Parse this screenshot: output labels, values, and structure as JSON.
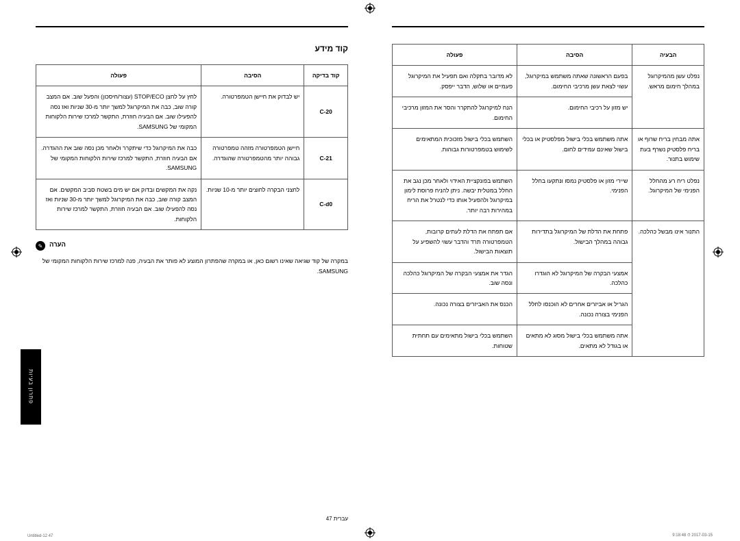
{
  "registration_glyph": "⊕",
  "right_page": {
    "headers": [
      "הבעיה",
      "הסיבה",
      "פעולה"
    ],
    "rows": [
      {
        "c0": "נפלט עשן מהמיקרוגל במהלך חימום מראש.",
        "c1": "בפעם הראשונה שאתה משתמש במיקרוגל, עשוי לצאת עשן מרכיבי החימום.",
        "c2": "לא מדובר בתקלה ואם תפעיל את המיקרוגל פעמיים או שלוש, הדבר ייפסק."
      },
      {
        "c0": "",
        "c1": "יש מזון על רכיבי החימום.",
        "c2": "הנח למיקרוגל להתקרר והסר את המזון מרכיבי החימום."
      },
      {
        "c0": "אתה מבחין בריח שרוף או בריח פלסטיק נשרף בעת שימוש בתנור.",
        "c1": "אתה משתמש בכלי בישול מפלסטיק או בכלי בישול שאינם עמידים לחום.",
        "c2": "השתמש בכלי בישול מזכוכית המתאימים לשימוש בטמפרטורות גבוהות."
      },
      {
        "c0": "נפלט ריח רע מהחלל הפנימי של המיקרוגל.",
        "c1": "שיירי מזון או פלסטיק נמסו ונתקעו בחלל הפנימי.",
        "c2": "השתמש בפונקציית האידוי ולאחר מכן נגב את החלל במטלית יבשה. ניתן להניח פרוסת לימון במיקרוגל ולהפעיל אותו כדי לנטרל את הריח במהירות רבה יותר."
      },
      {
        "c0": "התנור אינו מבשל כהלכה.",
        "c1": "פתחת את הדלת של המיקרוגל בתדירות גבוהה במהלך הבישול.",
        "c2": "אם תפתח את הדלת לעתים קרובות, הטמפרטורה תרד והדבר עשוי להשפיע על תוצאות הבישול."
      },
      {
        "c0": "",
        "c1": "אמצעי הבקרה של המיקרוגל לא הוגדרו כהלכה.",
        "c2": "הגדר את אמצעי הבקרה של המיקרוגל כהלכה ונסה שוב."
      },
      {
        "c0": "",
        "c1": "הגריל או אביזרים אחרים לא הוכנסו לחלל הפנימי בצורה נכונה.",
        "c2": "הכנס את האביזרים בצורה נכונה."
      },
      {
        "c0": "",
        "c1": "אתה משתמש בכלי בישול מסוג לא מתאים או בגודל לא מתאים.",
        "c2": "השתמש בכלי בישול מתאימים עם תחתית שטוחות."
      }
    ]
  },
  "left_page": {
    "title": "קוד מידע",
    "headers": [
      "קוד בדיקה",
      "הסיבה",
      "פעולה"
    ],
    "rows": [
      {
        "code": "C-20",
        "c1": "יש לבדוק את חיישן הטמפרטורה.",
        "c2": "לחץ על לחצן STOP/ECO (עצור/חיסכון) והפעל שוב. אם המצב קורה שוב, כבה את המיקרוגל למשך יותר מ-30 שניות ואז נסה להפעילו שוב. אם הבעיה חוזרת, התקשר למרכז שירות הלקוחות המקומי של SAMSUNG."
      },
      {
        "code": "C-21",
        "c1": "חיישן הטמפרטורה מזהה טמפרטורה גבוהה יותר מהטמפרטורה שהוגדרה.",
        "c2": "כבה את המיקרוגל כדי שיתקרר ולאחר מכן נסה שוב את ההגדרה. אם הבעיה חוזרת, התקשר למרכז שירות הלקוחות המקומי של SAMSUNG."
      },
      {
        "code": "C-d0",
        "c1": "לחצני הבקרה לחוצים יותר מ-10 שניות.",
        "c2": "נקה את המקשים ובדוק אם יש מים בשטח סביב המקשים. אם המצב קורה שוב, כבה את המיקרוגל למשך יותר מ-30 שניות ואז נסה להפעילו שוב. אם הבעיה חוזרת, התקשר למרכז שירות הלקוחות."
      }
    ],
    "note_label": "הערה",
    "note_text": "במקרה של קוד שגיאה שאינו רשום כאן, או במקרה שהפתרון המוצע לא פותר את הבעיה, פנה למרכז שירות הלקוחות המקומי של SAMSUNG.",
    "side_tab": "פתרון בעיות",
    "footer": "עברית  47"
  },
  "meta": {
    "left": "Untitled-12  47",
    "right": "2017-03-15  ⏱ 9:18:48"
  }
}
